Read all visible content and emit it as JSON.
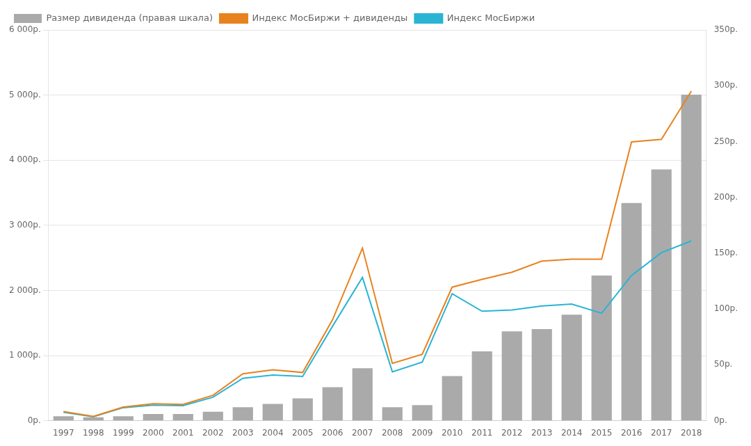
{
  "chart_data": {
    "type": "bar",
    "categories": [
      "1997",
      "1998",
      "1999",
      "2000",
      "2001",
      "2002",
      "2003",
      "2004",
      "2005",
      "2006",
      "2007",
      "2008",
      "2009",
      "2010",
      "2011",
      "2012",
      "2013",
      "2014",
      "2015",
      "2016",
      "2017",
      "2018"
    ],
    "series": [
      {
        "name": "Размер дивиденда (правая шкала)",
        "type": "bar",
        "axis": "y2",
        "color": "#aaaaaa",
        "values": [
          4,
          3,
          4,
          6,
          6,
          8,
          12,
          15,
          20,
          30,
          47,
          12,
          14,
          40,
          62,
          80,
          82,
          95,
          130,
          195,
          225,
          292
        ]
      },
      {
        "name": "Индекс МосБиржи + дивиденды",
        "type": "line",
        "marker": "none",
        "color": "#e8821e",
        "values": [
          140,
          65,
          210,
          260,
          250,
          390,
          720,
          780,
          740,
          1550,
          2650,
          880,
          1020,
          2050,
          2170,
          2280,
          2450,
          2480,
          2480,
          4280,
          4320,
          5060
        ]
      },
      {
        "name": "Индекс МосБиржи",
        "type": "line",
        "marker": "none",
        "color": "#29b4d4",
        "values": [
          130,
          60,
          200,
          240,
          230,
          360,
          650,
          700,
          680,
          1450,
          2200,
          750,
          900,
          1950,
          1680,
          1700,
          1760,
          1790,
          1650,
          2230,
          2580,
          2760
        ]
      }
    ],
    "ylim": [
      0,
      6000
    ],
    "yticks": [
      {
        "value": 0,
        "label": "0р."
      },
      {
        "value": 1000,
        "label": "1 000р."
      },
      {
        "value": 2000,
        "label": "2 000р."
      },
      {
        "value": 3000,
        "label": "3 000р."
      },
      {
        "value": 4000,
        "label": "4 000р."
      },
      {
        "value": 5000,
        "label": "5 000р."
      },
      {
        "value": 6000,
        "label": "6 000р."
      }
    ],
    "y2lim": [
      0,
      350
    ],
    "y2ticks": [
      {
        "value": 0,
        "label": "0р."
      },
      {
        "value": 50,
        "label": "50р."
      },
      {
        "value": 100,
        "label": "100р."
      },
      {
        "value": 150,
        "label": "150р."
      },
      {
        "value": 200,
        "label": "200р."
      },
      {
        "value": 250,
        "label": "250р."
      },
      {
        "value": 300,
        "label": "300р."
      },
      {
        "value": 350,
        "label": "350р."
      }
    ],
    "grid": true,
    "legend": "upper left"
  }
}
